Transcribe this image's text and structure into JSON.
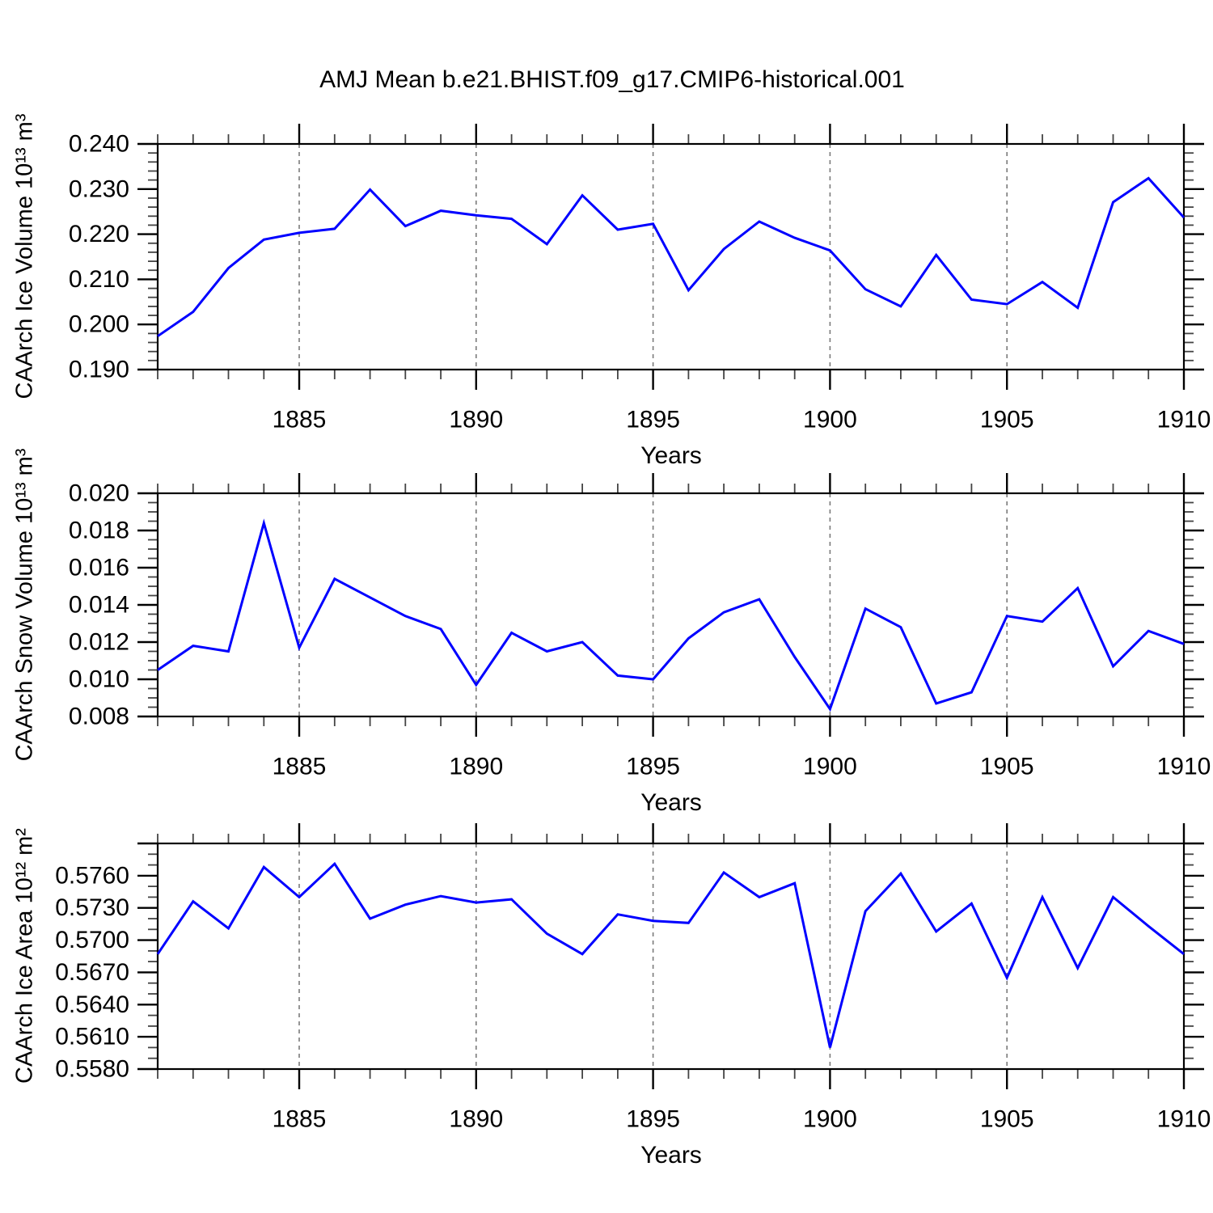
{
  "title": "AMJ Mean b.e21.BHIST.f09_g17.CMIP6-historical.001",
  "line_color": "#0000ff",
  "grid_color": "#7b7b7b",
  "frame_color": "#000000",
  "minor_tick_color": "#444444",
  "chart_data": [
    {
      "type": "line",
      "ylabel": "CAArch Ice Volume 10¹³ m³",
      "xlabel": "Years",
      "x": [
        1881,
        1882,
        1883,
        1884,
        1885,
        1886,
        1887,
        1888,
        1889,
        1890,
        1891,
        1892,
        1893,
        1894,
        1895,
        1896,
        1897,
        1898,
        1899,
        1900,
        1901,
        1902,
        1903,
        1904,
        1905,
        1906,
        1907,
        1908,
        1909,
        1910
      ],
      "values": [
        0.1974,
        0.2028,
        0.2125,
        0.2188,
        0.2203,
        0.2212,
        0.2299,
        0.2218,
        0.2252,
        0.2242,
        0.2234,
        0.2178,
        0.2286,
        0.221,
        0.2223,
        0.2076,
        0.2167,
        0.2228,
        0.2192,
        0.2164,
        0.2078,
        0.204,
        0.2154,
        0.2055,
        0.2045,
        0.2094,
        0.2037,
        0.2271,
        0.2324,
        0.2237
      ],
      "xlim": [
        1881,
        1910
      ],
      "ylim": [
        0.19,
        0.24
      ],
      "y_major_ticks": [
        0.19,
        0.2,
        0.21,
        0.22,
        0.23,
        0.24
      ],
      "y_tick_labels": [
        "0.190",
        "0.200",
        "0.210",
        "0.220",
        "0.230",
        "0.240"
      ],
      "y_minor_step": 0.002,
      "x_major_ticks": [
        1885,
        1890,
        1895,
        1900,
        1905,
        1910
      ],
      "x_tick_labels": [
        "1885",
        "1890",
        "1895",
        "1900",
        "1905",
        "1910"
      ],
      "x_minor_step": 1,
      "grid_years": [
        1885,
        1890,
        1895,
        1900,
        1905
      ],
      "grid_on": true,
      "legend": "none"
    },
    {
      "type": "line",
      "ylabel": "CAArch Snow Volume 10¹³ m³",
      "xlabel": "Years",
      "x": [
        1881,
        1882,
        1883,
        1884,
        1885,
        1886,
        1887,
        1888,
        1889,
        1890,
        1891,
        1892,
        1893,
        1894,
        1895,
        1896,
        1897,
        1898,
        1899,
        1900,
        1901,
        1902,
        1903,
        1904,
        1905,
        1906,
        1907,
        1908,
        1909,
        1910
      ],
      "values": [
        0.0105,
        0.0118,
        0.0115,
        0.0184,
        0.0117,
        0.0154,
        0.0144,
        0.0134,
        0.0127,
        0.0097,
        0.0125,
        0.0115,
        0.012,
        0.0102,
        0.01,
        0.0122,
        0.0136,
        0.0143,
        0.0112,
        0.0084,
        0.0138,
        0.0128,
        0.0087,
        0.0093,
        0.0134,
        0.0131,
        0.0149,
        0.0107,
        0.0126,
        0.0119
      ],
      "xlim": [
        1881,
        1910
      ],
      "ylim": [
        0.008,
        0.02
      ],
      "y_major_ticks": [
        0.008,
        0.01,
        0.012,
        0.014,
        0.016,
        0.018,
        0.02
      ],
      "y_tick_labels": [
        "0.008",
        "0.010",
        "0.012",
        "0.014",
        "0.016",
        "0.018",
        "0.020"
      ],
      "y_minor_step": 0.0005,
      "x_major_ticks": [
        1885,
        1890,
        1895,
        1900,
        1905,
        1910
      ],
      "x_tick_labels": [
        "1885",
        "1890",
        "1895",
        "1900",
        "1905",
        "1910"
      ],
      "x_minor_step": 1,
      "grid_years": [
        1885,
        1890,
        1895,
        1900,
        1905
      ],
      "grid_on": true,
      "legend": "none"
    },
    {
      "type": "line",
      "ylabel": "CAArch Ice Area 10¹² m²",
      "xlabel": "Years",
      "x": [
        1881,
        1882,
        1883,
        1884,
        1885,
        1886,
        1887,
        1888,
        1889,
        1890,
        1891,
        1892,
        1893,
        1894,
        1895,
        1896,
        1897,
        1898,
        1899,
        1900,
        1901,
        1902,
        1903,
        1904,
        1905,
        1906,
        1907,
        1908,
        1909,
        1910
      ],
      "values": [
        0.5687,
        0.5736,
        0.5711,
        0.5768,
        0.574,
        0.5771,
        0.572,
        0.5733,
        0.5741,
        0.5735,
        0.5738,
        0.5706,
        0.5687,
        0.5724,
        0.5718,
        0.5716,
        0.5763,
        0.574,
        0.5753,
        0.56,
        0.5727,
        0.5762,
        0.5708,
        0.5734,
        0.5665,
        0.574,
        0.5674,
        0.574,
        0.5713,
        0.5687
      ],
      "xlim": [
        1881,
        1910
      ],
      "ylim": [
        0.558,
        0.579
      ],
      "y_major_ticks": [
        0.558,
        0.561,
        0.564,
        0.567,
        0.57,
        0.573,
        0.576,
        0.579
      ],
      "y_tick_labels": [
        "0.5580",
        "0.5610",
        "0.5640",
        "0.5670",
        "0.5700",
        "0.5730",
        "0.5760",
        ""
      ],
      "y_minor_step": 0.001,
      "x_major_ticks": [
        1885,
        1890,
        1895,
        1900,
        1905,
        1910
      ],
      "x_tick_labels": [
        "1885",
        "1890",
        "1895",
        "1900",
        "1905",
        "1910"
      ],
      "x_minor_step": 1,
      "grid_years": [
        1885,
        1890,
        1895,
        1900,
        1905
      ],
      "grid_on": true,
      "legend": "none"
    }
  ]
}
